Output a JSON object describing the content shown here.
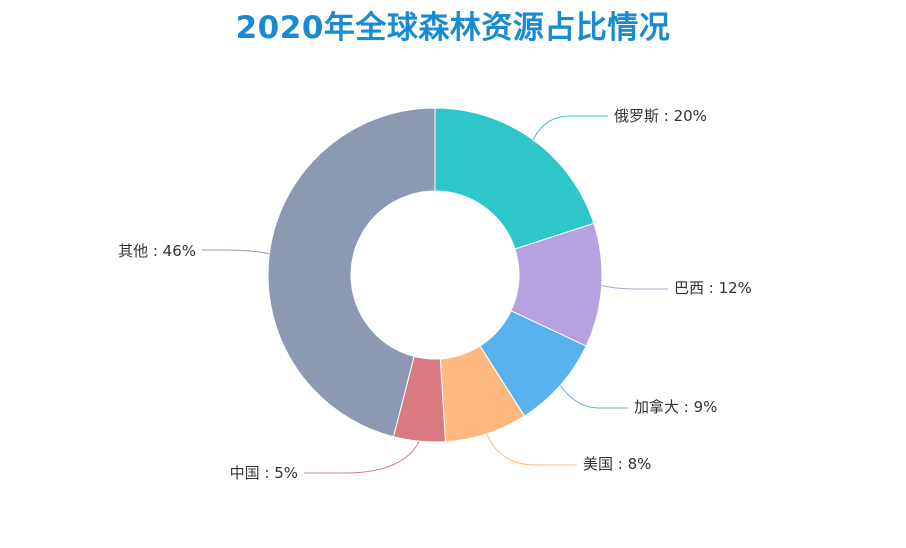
{
  "chart_data": {
    "type": "pie",
    "variant": "donut",
    "title": "2020年全球森林资源占比情况",
    "unit": "%",
    "legend": "none",
    "slices": [
      {
        "name": "俄罗斯",
        "value": 20,
        "color": "#2ec7c9",
        "label": "俄罗斯 : 20%"
      },
      {
        "name": "巴西",
        "value": 12,
        "color": "#b6a2de",
        "label": "巴西 : 12%"
      },
      {
        "name": "加拿大",
        "value": 9,
        "color": "#5ab1ef",
        "label": "加拿大 : 9%"
      },
      {
        "name": "美国",
        "value": 8,
        "color": "#ffb980",
        "label": "美国 : 8%"
      },
      {
        "name": "中国",
        "value": 5,
        "color": "#d87a80",
        "label": "中国 : 5%"
      },
      {
        "name": "其他",
        "value": 46,
        "color": "#8d98b3",
        "label": "其他 : 46%"
      }
    ]
  }
}
